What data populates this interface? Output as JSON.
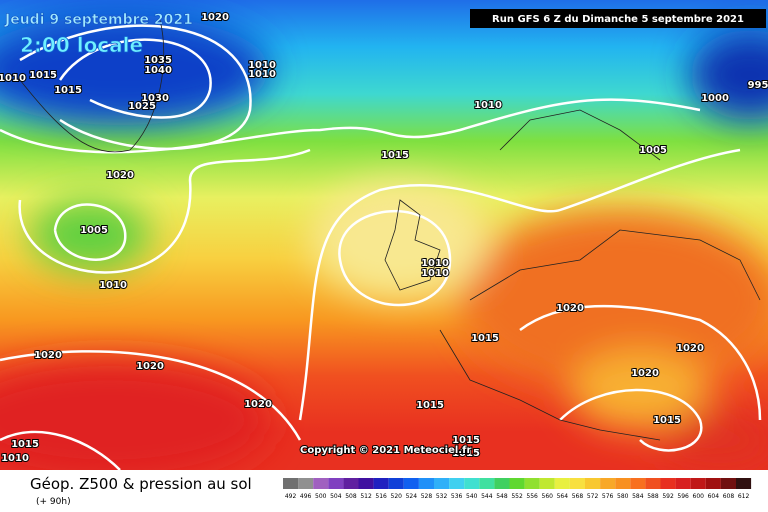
{
  "header": {
    "date": "Jeudi 9 septembre 2021",
    "time": "2:00 locale",
    "run": "Run GFS 6 Z du Dimanche 5 septembre 2021"
  },
  "copyright": "Copyright © 2021 Meteociel.fr",
  "legend": {
    "title": "Géop. Z500 & pression au sol",
    "lead": "(+ 90h)",
    "labels": [
      492,
      496,
      500,
      504,
      508,
      512,
      516,
      520,
      524,
      528,
      532,
      536,
      540,
      544,
      548,
      552,
      556,
      560,
      564,
      568,
      572,
      576,
      580,
      584,
      588,
      592,
      596,
      600,
      604,
      608,
      612
    ]
  },
  "isobars": [
    "1020",
    "1010",
    "1015",
    "1015",
    "1035",
    "1040",
    "1030",
    "1025",
    "1020",
    "1010",
    "1010",
    "1010",
    "1015",
    "1005",
    "1000",
    "995",
    "1005",
    "1010",
    "1010",
    "1010",
    "1020",
    "1015",
    "1020",
    "1020",
    "1020",
    "1020",
    "1015",
    "1020",
    "1015",
    "1015",
    "1015",
    "1015",
    "1010"
  ]
}
